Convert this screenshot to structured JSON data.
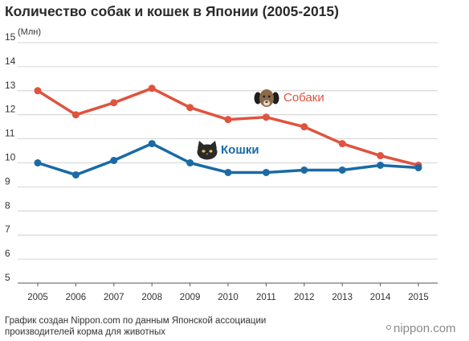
{
  "title": "Количество собак и кошек в Японии (2005-2015)",
  "unit_label": "(Млн)",
  "footer_line1": "График создан Nippon.com по данным Японской ассоциации",
  "footer_line2": "производителей корма для животных",
  "brand": "nippon.com",
  "colors": {
    "dogs": "#e0533e",
    "cats": "#1a6aa5",
    "grid": "#c8c8c8",
    "axis": "#555555"
  },
  "icons": {
    "dogs": "dog-face-icon",
    "cats": "cat-face-icon"
  },
  "chart_data": {
    "type": "line",
    "title": "Количество собак и кошек в Японии (2005-2015)",
    "ylabel": "(Млн)",
    "xlabel": "",
    "x": [
      2005,
      2006,
      2007,
      2008,
      2009,
      2010,
      2011,
      2012,
      2013,
      2014,
      2015
    ],
    "ylim": [
      5,
      15
    ],
    "yticks": [
      5,
      6,
      7,
      8,
      9,
      10,
      11,
      12,
      13,
      14,
      15
    ],
    "grid": true,
    "series": [
      {
        "name": "Собаки",
        "values": [
          13.0,
          12.0,
          12.5,
          13.1,
          12.3,
          11.8,
          11.9,
          11.5,
          10.8,
          10.3,
          9.9
        ]
      },
      {
        "name": "Кошки",
        "values": [
          10.0,
          9.5,
          10.1,
          10.8,
          10.0,
          9.6,
          9.6,
          9.7,
          9.7,
          9.9,
          9.8
        ]
      }
    ]
  }
}
